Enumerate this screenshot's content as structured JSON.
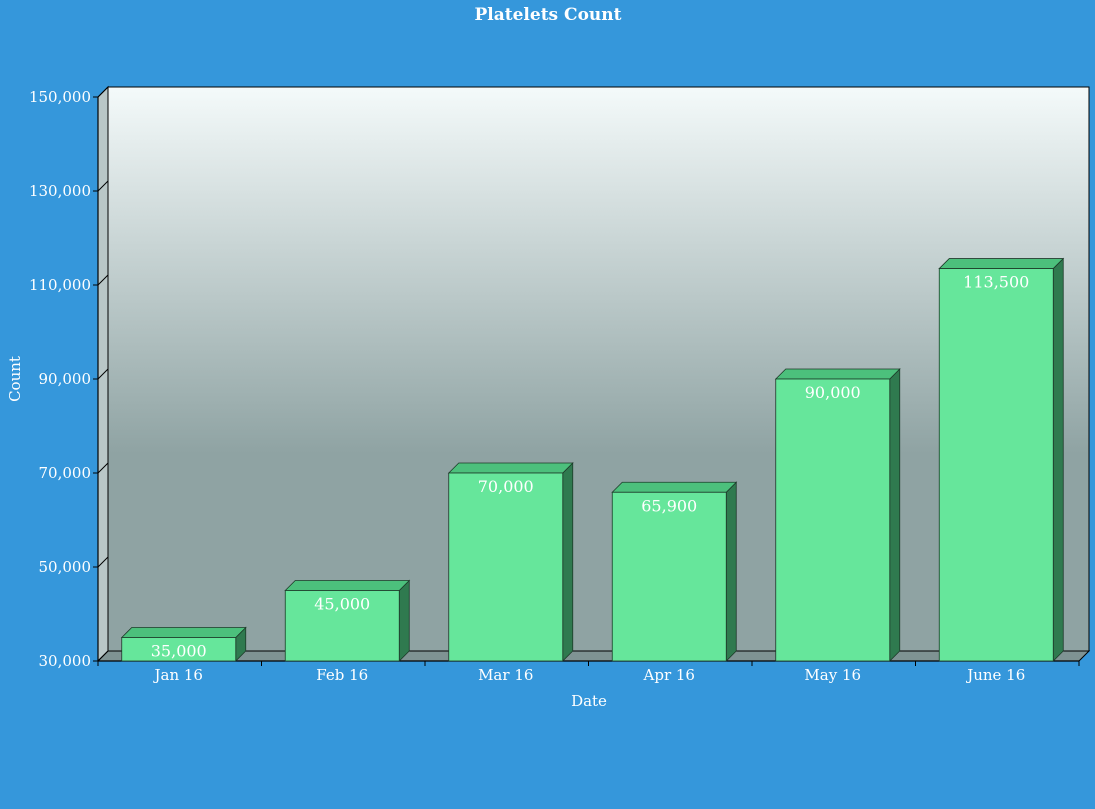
{
  "chart_data": {
    "type": "bar",
    "title": "Platelets Count",
    "xlabel": "Date",
    "ylabel": "Count",
    "categories": [
      "Jan 16",
      "Feb 16",
      "Mar 16",
      "Apr 16",
      "May 16",
      "June 16"
    ],
    "series": [
      {
        "values": [
          35000,
          45000,
          70000,
          65900,
          90000,
          113500
        ],
        "labels": [
          "35,000",
          "45,000",
          "70,000",
          "65,900",
          "90,000",
          "113,500"
        ]
      }
    ],
    "ylim": [
      30000,
      150000
    ],
    "yticks": [
      30000,
      50000,
      70000,
      90000,
      110000,
      130000,
      150000
    ],
    "ytick_labels": [
      "30,000",
      "50,000",
      "70,000",
      "90,000",
      "110,000",
      "130,000",
      "150,000"
    ],
    "grid": false,
    "legend": "none",
    "colors": {
      "background": "#3597db",
      "bar_front": "#66e69b",
      "bar_top": "#4cc07c",
      "bar_side": "#2f7a4f",
      "plot_top": "#f4fafa",
      "plot_mid": "#8fa3a3",
      "text": "#ffffff"
    }
  }
}
